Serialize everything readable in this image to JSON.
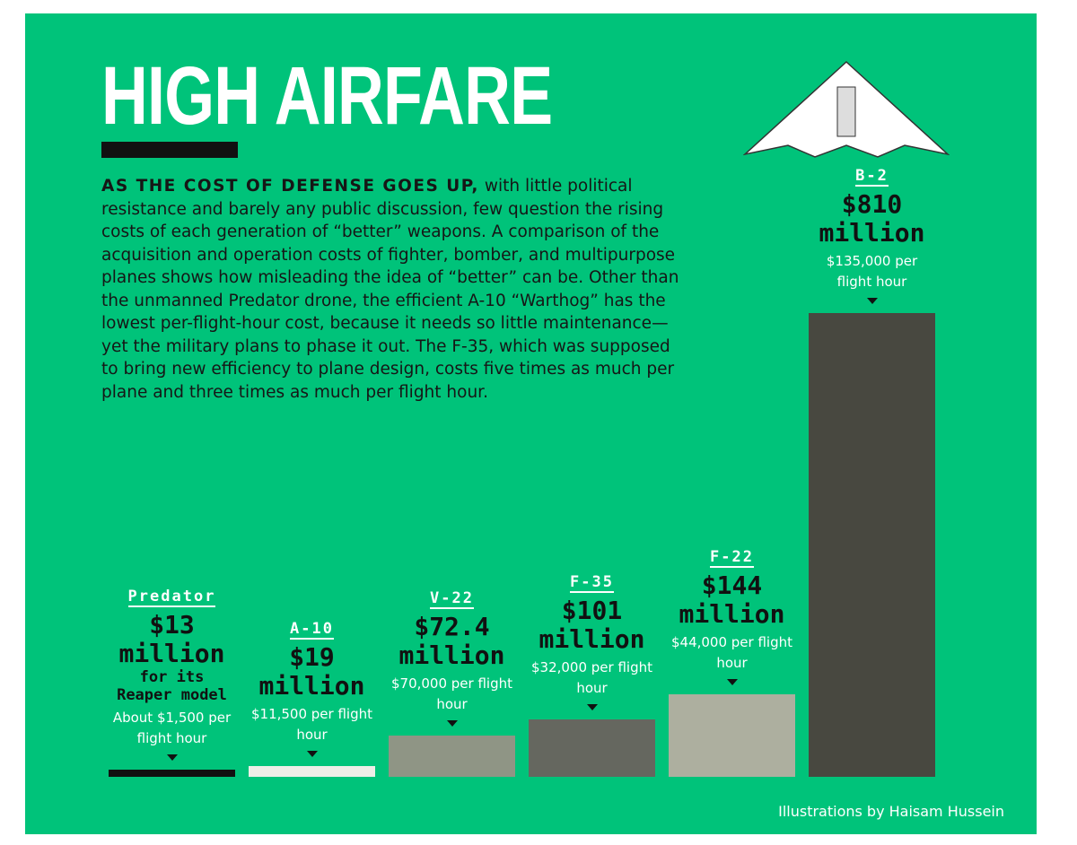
{
  "chart_data": {
    "type": "bar",
    "title": "HIGH AIRFARE",
    "lead": "AS THE COST OF DEFENSE GOES UP,",
    "body": " with little political resistance and barely any public discussion, few question the rising costs of each generation of “better” weapons. A comparison of the acquisition and operation costs of fighter, bomber, and multipurpose planes shows how misleading the idea of “better” can be. Other than the unmanned Predator drone, the efficient A-10 “Warthog” has the lowest per-flight-hour cost, because it needs so little maintenance—yet the military plans to phase it out. The F-35, which was supposed to bring new efficiency to plane design, costs five times as much per plane and three times as much per flight hour.",
    "categories": [
      "Predator",
      "A-10",
      "V-22",
      "F-35",
      "F-22",
      "B-2"
    ],
    "values": [
      13,
      19,
      72.4,
      101,
      144,
      810
    ],
    "value_labels": [
      "$13 million",
      "$19 million",
      "$72.4 million",
      "$101 million",
      "$144 million",
      "$810 million"
    ],
    "value_notes": [
      "for its Reaper model",
      null,
      null,
      null,
      null,
      null
    ],
    "hourly_labels": [
      "About $1,500 per flight hour",
      "$11,500 per flight hour",
      "$70,000 per flight hour",
      "$32,000 per flight hour",
      "$44,000 per flight hour",
      "$135,000 per flight hour"
    ],
    "colors": [
      "#111111",
      "#eeeee8",
      "#8f9585",
      "#65675f",
      "#adaf9f",
      "#484840"
    ],
    "credit": "Illustrations by Haisam Hussein"
  }
}
